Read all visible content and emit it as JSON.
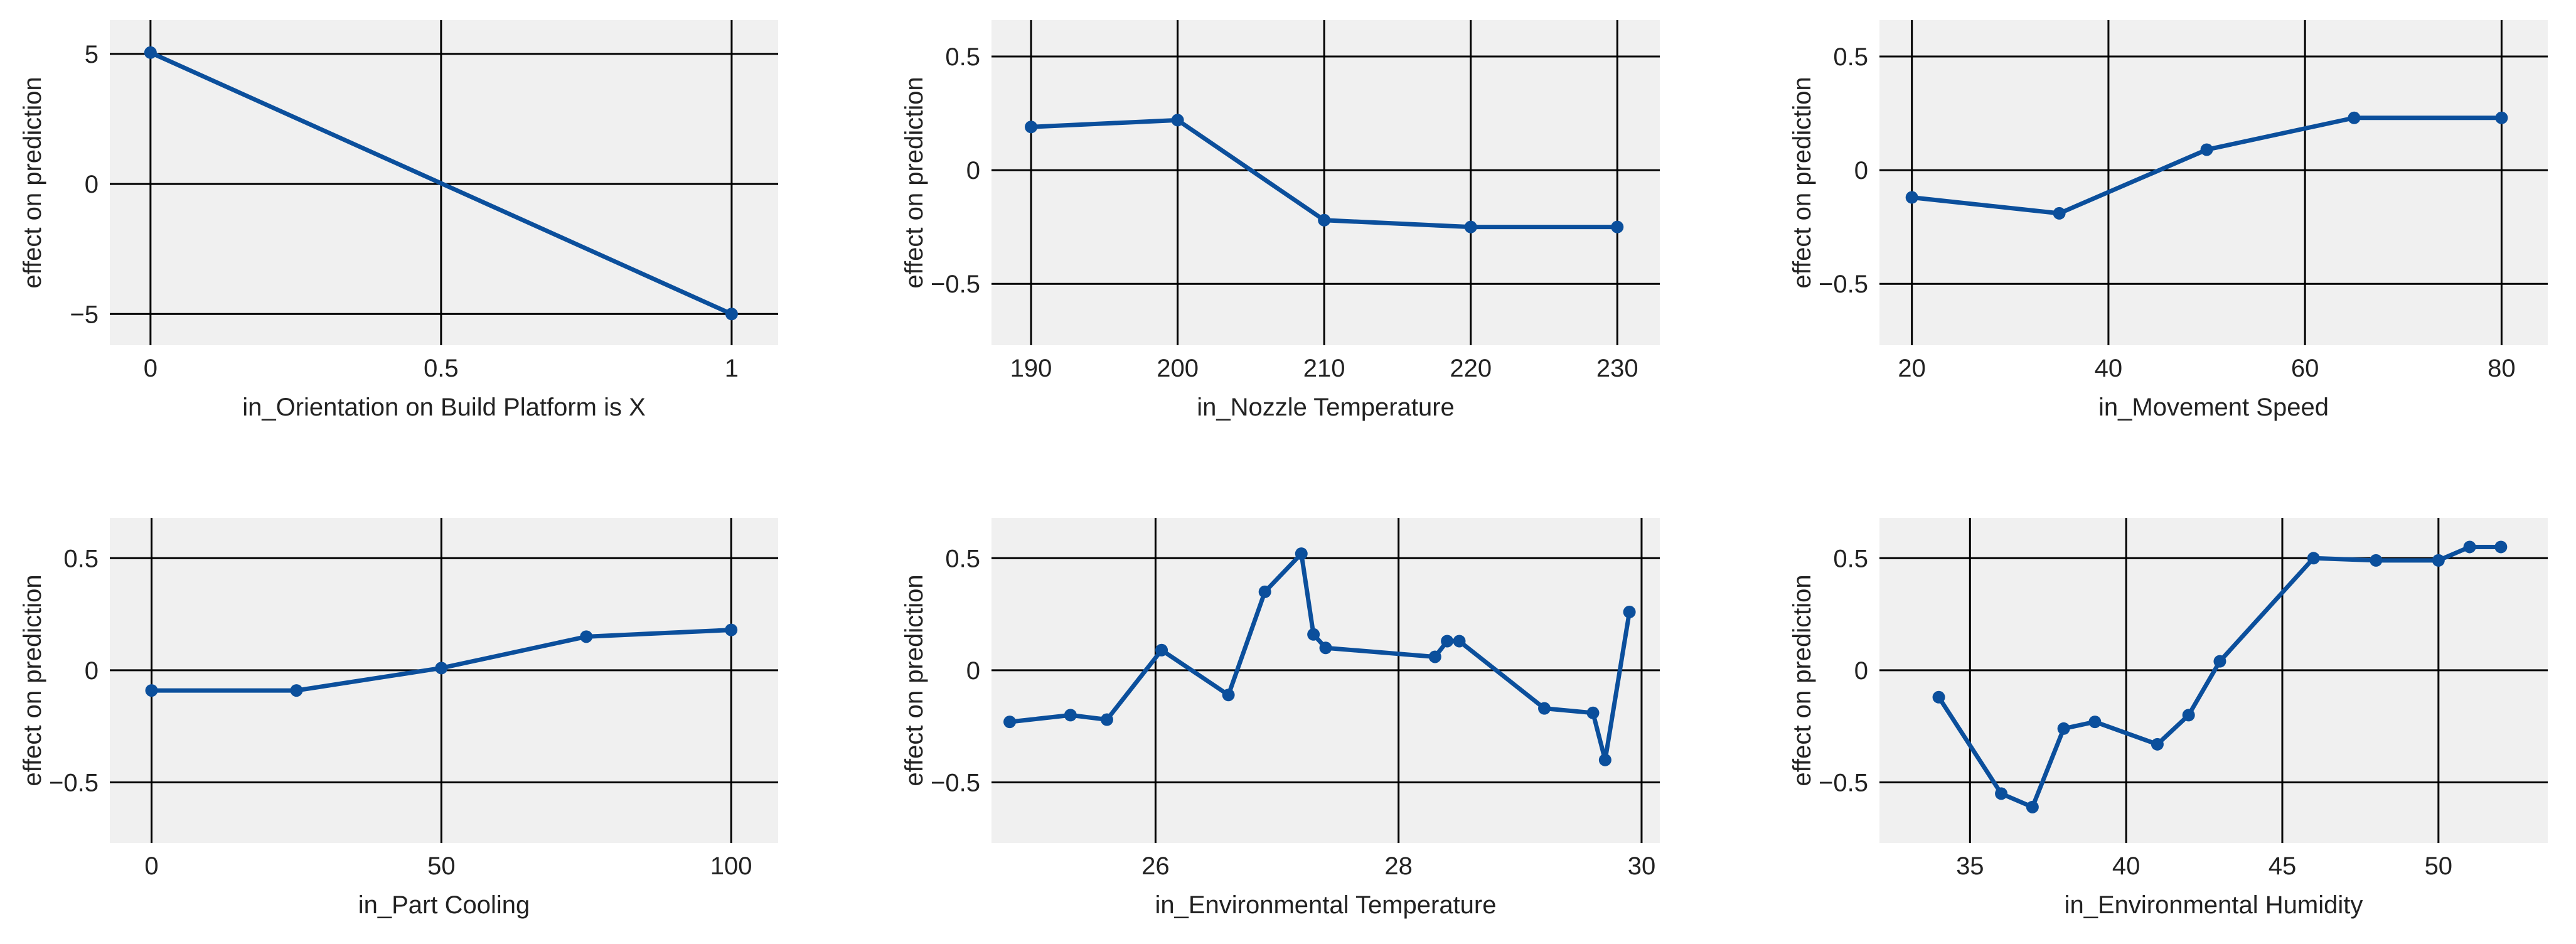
{
  "figure_bg": "#ffffff",
  "panel_bg": "#f0f0f0",
  "grid_color": "#000000",
  "line_color": "#0b4f9c",
  "chart_data": [
    {
      "type": "line",
      "xlabel": "in_Orientation on Build Platform is X",
      "ylabel": "effect on prediction",
      "xlim": [
        -0.07,
        1.08
      ],
      "ylim": [
        -6.2,
        6.3
      ],
      "xticks": [
        0,
        0.5,
        1
      ],
      "xtick_labels": [
        "0",
        "0.5",
        "1"
      ],
      "yticks": [
        -5,
        0,
        5
      ],
      "ytick_labels": [
        "−5",
        "0",
        "5"
      ],
      "x": [
        0,
        1
      ],
      "y": [
        5.05,
        -5.0
      ]
    },
    {
      "type": "line",
      "xlabel": "in_Nozzle Temperature",
      "ylabel": "effect on prediction",
      "xlim": [
        187.3,
        232.9
      ],
      "ylim": [
        -0.77,
        0.66
      ],
      "xticks": [
        190,
        200,
        210,
        220,
        230
      ],
      "xtick_labels": [
        "190",
        "200",
        "210",
        "220",
        "230"
      ],
      "yticks": [
        -0.5,
        0,
        0.5
      ],
      "ytick_labels": [
        "−0.5",
        "0",
        "0.5"
      ],
      "x": [
        190,
        200,
        210,
        220,
        230
      ],
      "y": [
        0.19,
        0.22,
        -0.22,
        -0.25,
        -0.25
      ]
    },
    {
      "type": "line",
      "xlabel": "in_Movement Speed",
      "ylabel": "effect on prediction",
      "xlim": [
        16.7,
        84.7
      ],
      "ylim": [
        -0.77,
        0.66
      ],
      "xticks": [
        20,
        40,
        60,
        80
      ],
      "xtick_labels": [
        "20",
        "40",
        "60",
        "80"
      ],
      "yticks": [
        -0.5,
        0,
        0.5
      ],
      "ytick_labels": [
        "−0.5",
        "0",
        "0.5"
      ],
      "x": [
        20,
        35,
        50,
        65,
        80
      ],
      "y": [
        -0.12,
        -0.19,
        0.09,
        0.23,
        0.23
      ]
    },
    {
      "type": "line",
      "xlabel": "in_Part Cooling",
      "ylabel": "effect on prediction",
      "xlim": [
        -7.2,
        108.1
      ],
      "ylim": [
        -0.77,
        0.68
      ],
      "xticks": [
        0,
        50,
        100
      ],
      "xtick_labels": [
        "0",
        "50",
        "100"
      ],
      "yticks": [
        -0.5,
        0,
        0.5
      ],
      "ytick_labels": [
        "−0.5",
        "0",
        "0.5"
      ],
      "x": [
        0,
        25,
        50,
        75,
        100
      ],
      "y": [
        -0.09,
        -0.09,
        0.01,
        0.15,
        0.18
      ]
    },
    {
      "type": "line",
      "xlabel": "in_Environmental Temperature",
      "ylabel": "effect on prediction",
      "xlim": [
        24.65,
        30.15
      ],
      "ylim": [
        -0.77,
        0.68
      ],
      "xticks": [
        26,
        28,
        30
      ],
      "xtick_labels": [
        "26",
        "28",
        "30"
      ],
      "yticks": [
        -0.5,
        0,
        0.5
      ],
      "ytick_labels": [
        "−0.5",
        "0",
        "0.5"
      ],
      "x": [
        24.8,
        25.3,
        25.6,
        26.05,
        26.6,
        26.9,
        27.2,
        27.3,
        27.4,
        28.3,
        28.4,
        28.5,
        29.2,
        29.6,
        29.7,
        29.9
      ],
      "y": [
        -0.23,
        -0.2,
        -0.22,
        0.09,
        -0.11,
        0.35,
        0.52,
        0.16,
        0.1,
        0.06,
        0.13,
        0.13,
        -0.17,
        -0.19,
        -0.4,
        0.26
      ]
    },
    {
      "type": "line",
      "xlabel": "in_Environmental Humidity",
      "ylabel": "effect on prediction",
      "xlim": [
        32.1,
        53.5
      ],
      "ylim": [
        -0.77,
        0.68
      ],
      "xticks": [
        35,
        40,
        45,
        50
      ],
      "xtick_labels": [
        "35",
        "40",
        "45",
        "50"
      ],
      "yticks": [
        -0.5,
        0,
        0.5
      ],
      "ytick_labels": [
        "−0.5",
        "0",
        "0.5"
      ],
      "x": [
        34,
        36,
        37,
        38,
        39,
        41,
        42,
        43,
        46,
        48,
        50,
        51,
        52
      ],
      "y": [
        -0.12,
        -0.55,
        -0.61,
        -0.26,
        -0.23,
        -0.33,
        -0.2,
        0.04,
        0.5,
        0.49,
        0.49,
        0.55,
        0.55
      ]
    }
  ]
}
